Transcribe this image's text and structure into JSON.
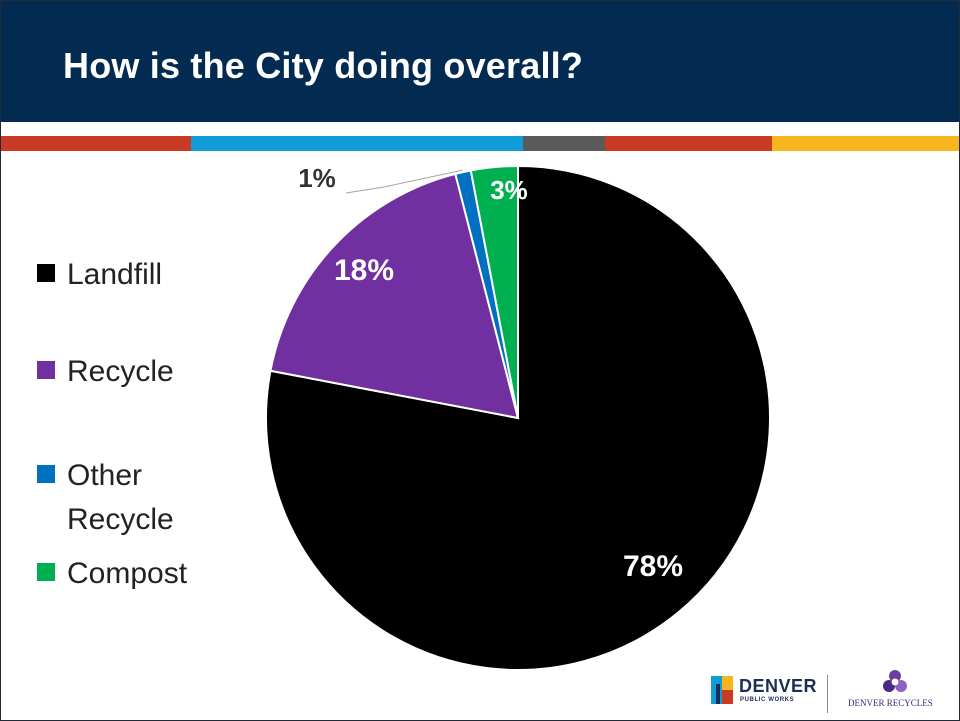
{
  "slide": {
    "title": "How is the City doing overall?",
    "stripe_colors": [
      "#c83a24",
      "#119bd7",
      "#5a5a5a",
      "#c83a24",
      "#f9b51e"
    ]
  },
  "chart_data": {
    "type": "pie",
    "title": "",
    "legend_position": "left",
    "slices": [
      {
        "name": "Landfill",
        "value": 78,
        "label": "78%",
        "color": "#000000"
      },
      {
        "name": "Recycle",
        "value": 18,
        "label": "18%",
        "color": "#7030a0"
      },
      {
        "name": "Other Recycle",
        "value": 1,
        "label": "1%",
        "color": "#0070c0"
      },
      {
        "name": "Compost",
        "value": 3,
        "label": "3%",
        "color": "#00b050"
      }
    ]
  },
  "logos": {
    "denver_word": "DENVER",
    "denver_sub": "PUBLIC WORKS",
    "recycles_word": "DENVER RECYCLES"
  }
}
